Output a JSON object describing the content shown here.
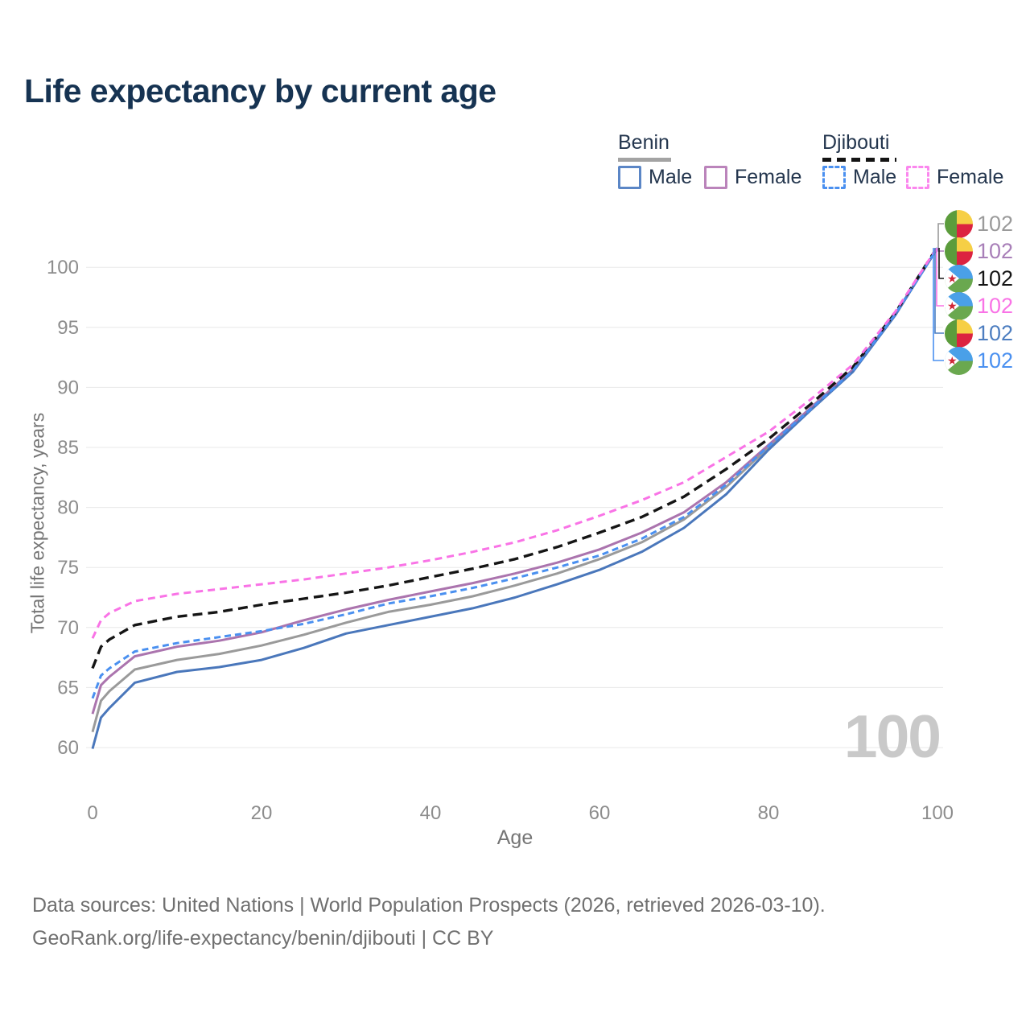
{
  "header": {
    "title": "Life expectancy by current age"
  },
  "legend": {
    "benin": {
      "title": "Benin",
      "male": "Male",
      "female": "Female"
    },
    "djibouti": {
      "title": "Djibouti",
      "male": "Male",
      "female": "Female"
    }
  },
  "chart_data": {
    "type": "line",
    "title": "Life expectancy by current age",
    "xlabel": "Age",
    "ylabel": "Total life expectancy, years",
    "xlim": [
      0,
      100
    ],
    "ylim": [
      59,
      102
    ],
    "xticks": [
      0,
      20,
      40,
      60,
      80,
      100
    ],
    "yticks": [
      60,
      65,
      70,
      75,
      80,
      85,
      90,
      95,
      100
    ],
    "grid": "horizontal",
    "legend_position": "top-right",
    "hover_age_label": "100",
    "x": [
      0,
      1,
      2,
      5,
      10,
      15,
      20,
      25,
      30,
      35,
      40,
      45,
      50,
      55,
      60,
      65,
      70,
      75,
      80,
      85,
      90,
      95,
      100
    ],
    "series": [
      {
        "id": "benin_both",
        "country": "Benin",
        "sex": "Both",
        "color": "#9a9a9a",
        "dash": "solid",
        "values": [
          61.3,
          63.9,
          64.7,
          66.5,
          67.3,
          67.8,
          68.5,
          69.4,
          70.4,
          71.3,
          71.9,
          72.6,
          73.5,
          74.5,
          75.7,
          77.1,
          79.0,
          81.7,
          85.0,
          88.2,
          91.4,
          96.1,
          101.6
        ]
      },
      {
        "id": "benin_female",
        "country": "Benin",
        "sex": "Female",
        "color": "#ab74ae",
        "dash": "solid",
        "values": [
          62.8,
          65.2,
          65.9,
          67.6,
          68.4,
          68.9,
          69.6,
          70.6,
          71.5,
          72.3,
          73.0,
          73.7,
          74.5,
          75.4,
          76.5,
          77.9,
          79.6,
          82.1,
          85.2,
          88.3,
          91.5,
          96.1,
          101.6
        ]
      },
      {
        "id": "benin_male",
        "country": "Benin",
        "sex": "Male",
        "color": "#4a77bb",
        "dash": "solid",
        "values": [
          59.9,
          62.5,
          63.3,
          65.4,
          66.3,
          66.7,
          67.3,
          68.3,
          69.5,
          70.2,
          70.9,
          71.6,
          72.5,
          73.6,
          74.8,
          76.3,
          78.3,
          81.1,
          84.8,
          88.1,
          91.3,
          96.0,
          101.6
        ]
      },
      {
        "id": "djibouti_both",
        "country": "Djibouti",
        "sex": "Both",
        "color": "#151515",
        "dash": "dashed",
        "values": [
          66.6,
          68.4,
          69.0,
          70.2,
          70.9,
          71.3,
          71.9,
          72.4,
          72.9,
          73.5,
          74.2,
          74.9,
          75.7,
          76.7,
          77.9,
          79.2,
          80.9,
          83.2,
          85.7,
          88.6,
          91.7,
          96.2,
          101.7
        ]
      },
      {
        "id": "djibouti_male",
        "country": "Djibouti",
        "sex": "Male",
        "color": "#4a90f0",
        "dash": "dashed",
        "values": [
          64.1,
          66.0,
          66.6,
          68.0,
          68.7,
          69.2,
          69.7,
          70.3,
          71.1,
          72.0,
          72.6,
          73.3,
          74.1,
          75.0,
          76.0,
          77.4,
          79.2,
          81.9,
          85.1,
          88.2,
          91.4,
          96.1,
          101.6
        ]
      },
      {
        "id": "djibouti_female",
        "country": "Djibouti",
        "sex": "Female",
        "color": "#f973e6",
        "dash": "dashed",
        "values": [
          69.1,
          70.6,
          71.2,
          72.2,
          72.8,
          73.2,
          73.6,
          74.0,
          74.5,
          75.0,
          75.6,
          76.3,
          77.1,
          78.1,
          79.3,
          80.6,
          82.1,
          84.2,
          86.3,
          89.0,
          91.9,
          96.3,
          101.7
        ]
      }
    ],
    "end_labels": [
      {
        "flag": "benin",
        "series": "benin_both",
        "value": "102",
        "color": "#9a9a9a"
      },
      {
        "flag": "benin",
        "series": "benin_female",
        "value": "102",
        "color": "#a87fb8"
      },
      {
        "flag": "djibouti",
        "series": "djibouti_both",
        "value": "102",
        "color": "#151515"
      },
      {
        "flag": "djibouti",
        "series": "djibouti_female",
        "value": "102",
        "color": "#f973e6"
      },
      {
        "flag": "benin",
        "series": "benin_male",
        "value": "102",
        "color": "#4d7ec0"
      },
      {
        "flag": "djibouti",
        "series": "djibouti_male",
        "value": "102",
        "color": "#4a90f0"
      }
    ]
  },
  "footer": {
    "line1": "Data sources: United Nations | World Population Prospects (2026, retrieved 2026-03-10).",
    "line2": "GeoRank.org/life-expectancy/benin/djibouti | CC BY"
  }
}
